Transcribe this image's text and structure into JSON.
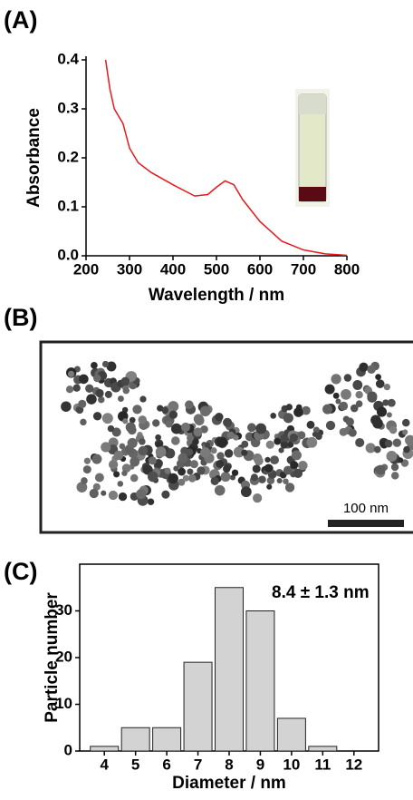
{
  "panels": [
    "(A)",
    "(B)",
    "(C)"
  ],
  "image": {
    "scale_label": "100 nm"
  },
  "chart_data": [
    {
      "type": "line",
      "xlabel": "Wavelength / nm",
      "ylabel": "Absorbance",
      "x": [
        245,
        255,
        265,
        275,
        285,
        300,
        320,
        350,
        400,
        450,
        480,
        500,
        520,
        540,
        560,
        600,
        650,
        700,
        750,
        800
      ],
      "values": [
        0.4,
        0.34,
        0.3,
        0.285,
        0.27,
        0.22,
        0.19,
        0.17,
        0.145,
        0.122,
        0.125,
        0.14,
        0.153,
        0.145,
        0.115,
        0.07,
        0.03,
        0.012,
        0.004,
        0.001
      ],
      "color": "#e8191c",
      "xlim": [
        200,
        800
      ],
      "xticks": [
        200,
        300,
        400,
        500,
        600,
        700,
        800
      ],
      "ylim": [
        0,
        0.4
      ],
      "yticks": [
        {
          "value": 0,
          "label": "0.0"
        },
        0.1,
        0.2,
        0.3,
        0.4
      ]
    },
    {
      "type": "bar",
      "xlabel": "Diameter / nm",
      "ylabel": "Particle number",
      "annotation": "8.4 ± 1.3 nm",
      "categories": [
        "4",
        "5",
        "6",
        "7",
        "8",
        "9",
        "10",
        "11",
        "12"
      ],
      "values": [
        1,
        5,
        5,
        19,
        35,
        30,
        7,
        1,
        0
      ],
      "color": "#d3d3d3",
      "ylim": [
        0,
        40
      ],
      "yticks": [
        0,
        10,
        20,
        30
      ]
    }
  ]
}
